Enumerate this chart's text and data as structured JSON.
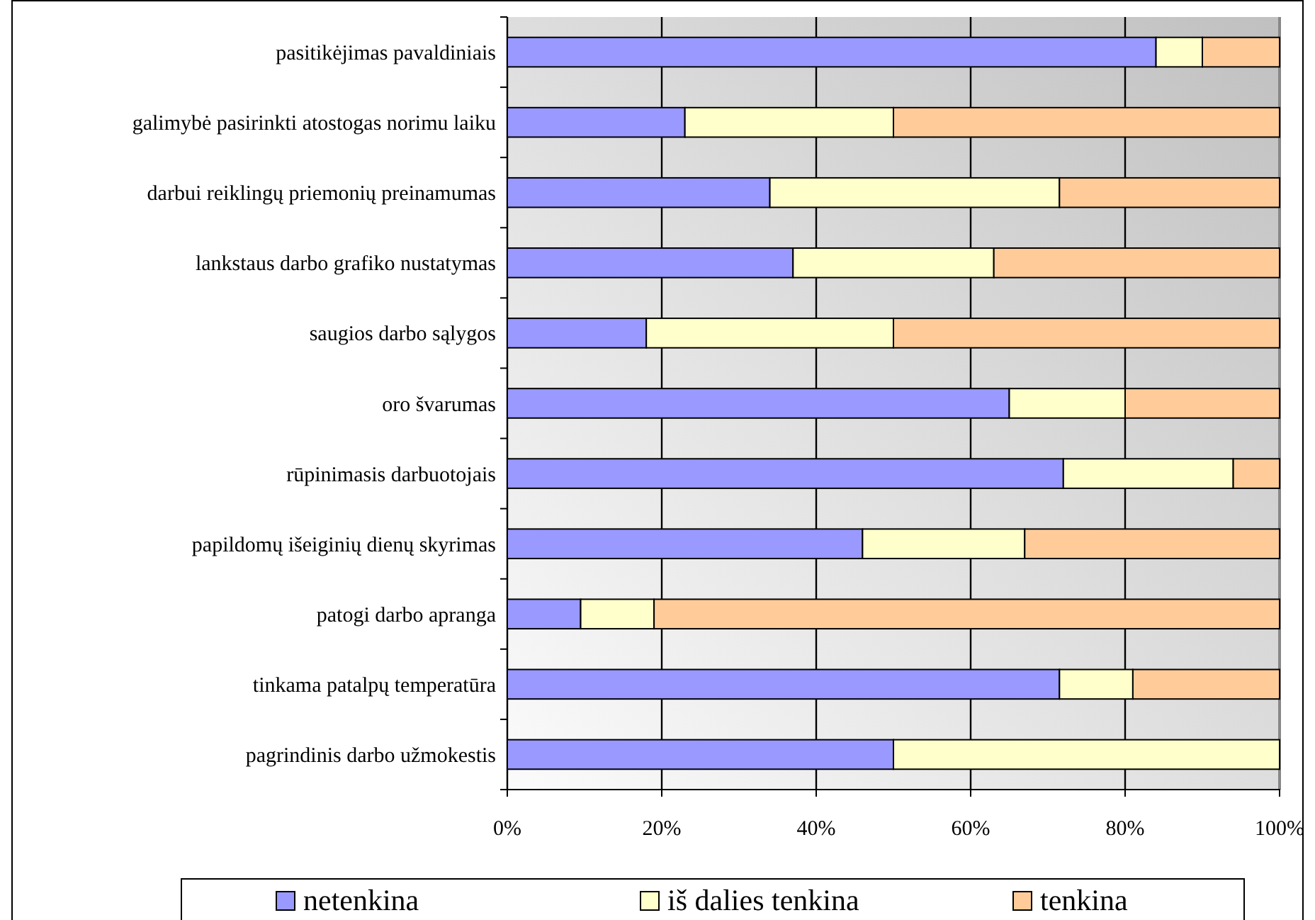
{
  "chart_data": {
    "type": "bar",
    "orientation": "horizontal",
    "stacked": true,
    "categories": [
      "pasitikėjimas pavaldiniais",
      "galimybė pasirinkti atostogas norimu laiku",
      "darbui reiklingų priemonių preinamumas",
      "lankstaus darbo grafiko nustatymas",
      "saugios darbo sąlygos",
      "oro švarumas",
      "rūpinimasis darbuotojais",
      "papildomų išeiginių dienų skyrimas",
      "patogi darbo apranga",
      "tinkama patalpų temperatūra",
      "pagrindinis darbo užmokestis"
    ],
    "series": [
      {
        "name": "netenkina",
        "color": "#9999ff",
        "values": [
          84,
          23,
          34,
          37,
          18,
          65,
          72,
          46,
          9.5,
          71.5,
          50
        ]
      },
      {
        "name": "iš dalies tenkina",
        "color": "#ffffcc",
        "values": [
          6,
          27,
          37.5,
          26,
          32,
          15,
          22,
          21,
          9.5,
          9.5,
          50
        ]
      },
      {
        "name": "tenkina",
        "color": "#ffcc99",
        "values": [
          10,
          50,
          28.5,
          37,
          50,
          20,
          6,
          33,
          81,
          19,
          0
        ]
      }
    ],
    "xlim": [
      0,
      100
    ],
    "xticks": [
      {
        "value": 0,
        "label": "0%"
      },
      {
        "value": 20,
        "label": "20%"
      },
      {
        "value": 40,
        "label": "40%"
      },
      {
        "value": 60,
        "label": "60%"
      },
      {
        "value": 80,
        "label": "80%"
      },
      {
        "value": 100,
        "label": "100%"
      }
    ],
    "grid": "x",
    "legend": "bottom"
  }
}
